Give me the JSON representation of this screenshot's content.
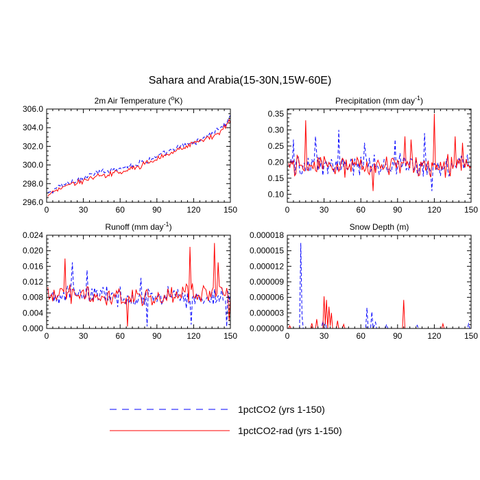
{
  "figure_title": "Sahara and Arabia(15-30N,15W-60E)",
  "legend": [
    {
      "label": "1pctCO2 (yrs 1-150)",
      "color": "#0000ff",
      "dash": true
    },
    {
      "label": "1pctCO2-rad (yrs 1-150)",
      "color": "#ff0000",
      "dash": false
    }
  ],
  "chart_data": [
    {
      "type": "line",
      "title": "2m Air Temperature (",
      "title_sup": "o",
      "title_suffix": "K)",
      "xlabel": "",
      "ylabel": "",
      "xlim": [
        0,
        150
      ],
      "ylim": [
        296,
        306
      ],
      "xticks": [
        0,
        30,
        60,
        90,
        120,
        150
      ],
      "yticks": [
        296,
        298,
        300,
        302,
        304,
        306
      ],
      "ytick_labels": [
        "296.0",
        "298.0",
        "300.0",
        "302.0",
        "304.0",
        "306.0"
      ],
      "grid": false,
      "series": [
        {
          "name": "1pctCO2 (yrs 1-150)",
          "color": "#0000ff",
          "anchors_x": [
            1,
            10,
            20,
            30,
            40,
            50,
            60,
            70,
            80,
            90,
            100,
            110,
            120,
            130,
            140,
            145,
            150
          ],
          "anchors_y": [
            296.9,
            297.7,
            298.2,
            298.6,
            299.1,
            299.4,
            299.7,
            300.0,
            300.4,
            300.9,
            301.4,
            302.0,
            302.4,
            303.0,
            303.8,
            304.3,
            305.0
          ],
          "noise": 0.35
        },
        {
          "name": "1pctCO2-rad (yrs 1-150)",
          "color": "#ff0000",
          "anchors_x": [
            1,
            10,
            20,
            30,
            40,
            50,
            60,
            70,
            80,
            90,
            100,
            110,
            120,
            130,
            140,
            145,
            150
          ],
          "anchors_y": [
            296.7,
            297.5,
            298.0,
            298.3,
            298.7,
            299.0,
            299.3,
            299.6,
            300.1,
            300.6,
            301.2,
            301.8,
            302.3,
            302.8,
            303.4,
            304.0,
            304.8
          ],
          "noise": 0.35
        }
      ]
    },
    {
      "type": "line",
      "title": "Precipitation (mm day",
      "title_sup": "-1",
      "title_suffix": ")",
      "xlabel": "",
      "ylabel": "",
      "xlim": [
        0,
        150
      ],
      "ylim": [
        0.075,
        0.365
      ],
      "xticks": [
        0,
        30,
        60,
        90,
        120,
        150
      ],
      "yticks": [
        0.1,
        0.15,
        0.2,
        0.25,
        0.3,
        0.35
      ],
      "ytick_labels": [
        "0.10",
        "0.15",
        "0.20",
        "0.25",
        "0.30",
        "0.35"
      ],
      "grid": false,
      "series": [
        {
          "name": "1pctCO2 (yrs 1-150)",
          "color": "#0000ff",
          "anchors_x": [
            1,
            150
          ],
          "anchors_y": [
            0.19,
            0.19
          ],
          "noise": 0.04,
          "spikes": [
            [
              5,
              0.27
            ],
            [
              23,
              0.28
            ],
            [
              42,
              0.3
            ],
            [
              63,
              0.26
            ],
            [
              88,
              0.27
            ],
            [
              112,
              0.29
            ],
            [
              118,
              0.11
            ]
          ]
        },
        {
          "name": "1pctCO2-rad (yrs 1-150)",
          "color": "#ff0000",
          "anchors_x": [
            1,
            150
          ],
          "anchors_y": [
            0.19,
            0.19
          ],
          "noise": 0.04,
          "spikes": [
            [
              15,
              0.33
            ],
            [
              96,
              0.28
            ],
            [
              101,
              0.27
            ],
            [
              120,
              0.35
            ],
            [
              137,
              0.28
            ],
            [
              143,
              0.26
            ],
            [
              70,
              0.11
            ]
          ]
        }
      ]
    },
    {
      "type": "line",
      "title": "Runoff (mm day",
      "title_sup": "-1",
      "title_suffix": ")",
      "xlabel": "",
      "ylabel": "",
      "xlim": [
        0,
        150
      ],
      "ylim": [
        0,
        0.024
      ],
      "xticks": [
        0,
        30,
        60,
        90,
        120,
        150
      ],
      "yticks": [
        0,
        0.004,
        0.008,
        0.012,
        0.016,
        0.02,
        0.024
      ],
      "ytick_labels": [
        "0.000",
        "0.004",
        "0.008",
        "0.012",
        "0.016",
        "0.020",
        "0.024"
      ],
      "grid": false,
      "series": [
        {
          "name": "1pctCO2 (yrs 1-150)",
          "color": "#0000ff",
          "anchors_x": [
            1,
            30,
            60,
            90,
            120,
            150
          ],
          "anchors_y": [
            0.009,
            0.009,
            0.008,
            0.008,
            0.008,
            0.008
          ],
          "noise": 0.003,
          "spikes": [
            [
              21,
              0.017
            ],
            [
              33,
              0.015
            ],
            [
              77,
              0.013
            ],
            [
              82,
              0.0005
            ],
            [
              118,
              0.001
            ],
            [
              147,
              0.0005
            ]
          ]
        },
        {
          "name": "1pctCO2-rad (yrs 1-150)",
          "color": "#ff0000",
          "anchors_x": [
            1,
            30,
            60,
            90,
            120,
            150
          ],
          "anchors_y": [
            0.009,
            0.009,
            0.008,
            0.008,
            0.009,
            0.009
          ],
          "noise": 0.003,
          "spikes": [
            [
              15,
              0.018
            ],
            [
              117,
              0.021
            ],
            [
              137,
              0.022
            ],
            [
              140,
              0.017
            ],
            [
              66,
              0.0005
            ],
            [
              149,
              0.002
            ]
          ]
        }
      ]
    },
    {
      "type": "line",
      "title": "Snow Depth (m)",
      "title_sup": "",
      "title_suffix": "",
      "xlabel": "",
      "ylabel": "",
      "xlim": [
        0,
        150
      ],
      "ylim": [
        0,
        1.8e-05
      ],
      "xticks": [
        0,
        30,
        60,
        90,
        120,
        150
      ],
      "yticks": [
        0,
        3e-06,
        6e-06,
        9e-06,
        1.2e-05,
        1.5e-05,
        1.8e-05
      ],
      "ytick_labels": [
        "0.000000",
        "0.000003",
        "0.000006",
        "0.000009",
        "0.000012",
        "0.000015",
        "0.000018"
      ],
      "grid": false,
      "series": [
        {
          "name": "1pctCO2 (yrs 1-150)",
          "color": "#0000ff",
          "points": [
            [
              10,
              0
            ],
            [
              11,
              1.65e-05
            ],
            [
              12,
              2.5e-06
            ],
            [
              13,
              0
            ],
            [
              28,
              0
            ],
            [
              29,
              1.5e-06
            ],
            [
              30,
              0
            ],
            [
              31,
              1.2e-06
            ],
            [
              32,
              0
            ],
            [
              64,
              0
            ],
            [
              65,
              4e-06
            ],
            [
              66,
              0
            ],
            [
              68,
              0
            ],
            [
              69,
              3.2e-06
            ],
            [
              70,
              0
            ],
            [
              72,
              1.2e-06
            ],
            [
              73,
              0
            ],
            [
              80,
              0
            ],
            [
              81,
              8e-07
            ],
            [
              82,
              0
            ],
            [
              105,
              0
            ],
            [
              106,
              6e-07
            ],
            [
              107,
              0
            ],
            [
              147,
              0
            ],
            [
              148,
              9e-07
            ],
            [
              149,
              0
            ]
          ]
        },
        {
          "name": "1pctCO2-rad (yrs 1-150)",
          "color": "#ff0000",
          "points": [
            [
              1,
              0
            ],
            [
              2,
              5e-07
            ],
            [
              3,
              0
            ],
            [
              19,
              0
            ],
            [
              20,
              1e-06
            ],
            [
              21,
              0
            ],
            [
              23,
              0
            ],
            [
              24,
              1.8e-06
            ],
            [
              25,
              0
            ],
            [
              29,
              0
            ],
            [
              30,
              6.2e-06
            ],
            [
              31,
              8e-07
            ],
            [
              32,
              5.5e-06
            ],
            [
              33,
              0
            ],
            [
              34,
              4.2e-06
            ],
            [
              35,
              5e-07
            ],
            [
              36,
              3e-06
            ],
            [
              37,
              0
            ],
            [
              40,
              0
            ],
            [
              41,
              1.5e-06
            ],
            [
              42,
              0
            ],
            [
              45,
              0
            ],
            [
              46,
              8e-07
            ],
            [
              47,
              0
            ],
            [
              94,
              0
            ],
            [
              95,
              5.5e-06
            ],
            [
              96,
              0
            ],
            [
              126,
              0
            ],
            [
              127,
              9e-07
            ],
            [
              128,
              0
            ]
          ]
        }
      ]
    }
  ]
}
